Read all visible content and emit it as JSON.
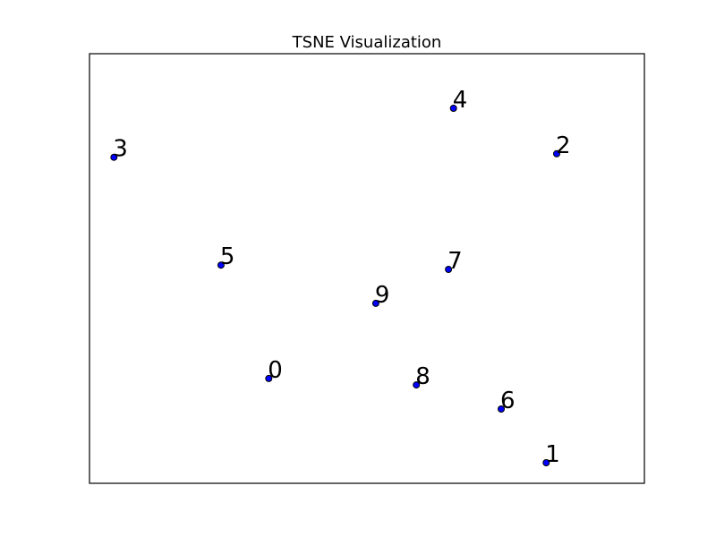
{
  "chart_data": {
    "type": "scatter",
    "title": "TSNE Visualization",
    "xlabel": "",
    "ylabel": "",
    "grid": false,
    "xlim": [
      0,
      100
    ],
    "ylim": [
      0,
      100
    ],
    "marker_color": "#0000ff",
    "points": [
      {
        "label": "0",
        "x": 32.3,
        "y": 24.4
      },
      {
        "label": "1",
        "x": 82.3,
        "y": 4.8
      },
      {
        "label": "2",
        "x": 84.2,
        "y": 76.7
      },
      {
        "label": "3",
        "x": 4.4,
        "y": 75.9
      },
      {
        "label": "4",
        "x": 65.6,
        "y": 87.3
      },
      {
        "label": "5",
        "x": 23.7,
        "y": 50.8
      },
      {
        "label": "6",
        "x": 74.2,
        "y": 17.3
      },
      {
        "label": "7",
        "x": 64.7,
        "y": 49.8
      },
      {
        "label": "8",
        "x": 58.9,
        "y": 22.9
      },
      {
        "label": "9",
        "x": 51.6,
        "y": 41.9
      }
    ]
  }
}
